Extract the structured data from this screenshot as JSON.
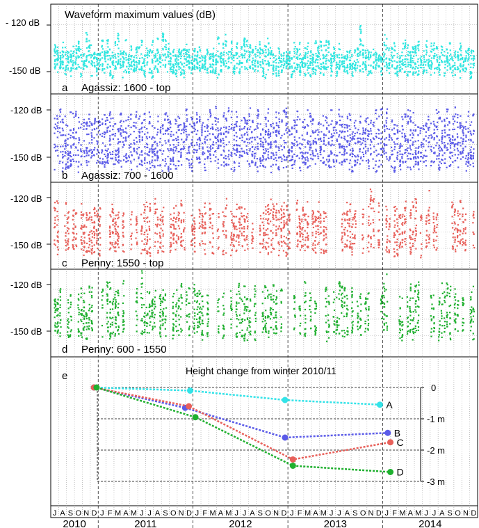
{
  "chart_data": [
    {
      "panel": "a",
      "type": "scatter",
      "title": "Waveform maximum values (dB)",
      "label": "Agassiz: 1600 - top",
      "yticks": [
        "- 120 dB",
        "-150 dB"
      ],
      "ylim": [
        -157,
        -112
      ],
      "color": "#2ee6e0",
      "x": [
        "2010-07",
        "2014-12"
      ],
      "y_range_dB": [
        -150,
        -128
      ],
      "grid": true
    },
    {
      "panel": "b",
      "type": "scatter",
      "label": "Agassiz: 700 - 1600",
      "yticks": [
        "-120 dB",
        "-150 dB"
      ],
      "ylim": [
        -157,
        -112
      ],
      "color": "#5b5be8",
      "y_range_dB": [
        -153,
        -117
      ],
      "grid": true
    },
    {
      "panel": "c",
      "type": "scatter",
      "label": "Penny:  1550 - top",
      "yticks": [
        "-120 dB",
        "-150 dB"
      ],
      "ylim": [
        -157,
        -112
      ],
      "color": "#e8605a",
      "y_range_dB": [
        -152,
        -118
      ],
      "grid": true
    },
    {
      "panel": "d",
      "type": "scatter",
      "label": "Penny:  600 - 1550",
      "yticks": [
        "-120 dB",
        "-150 dB"
      ],
      "ylim": [
        -157,
        -112
      ],
      "color": "#1fb02f",
      "y_range_dB": [
        -150,
        -116
      ],
      "grid": true
    },
    {
      "panel": "e",
      "type": "line",
      "title": "Height change from winter 2010/11",
      "yticks": [
        "0",
        "-1 m",
        "-2 m",
        "-3 m"
      ],
      "ylim": [
        -3,
        0
      ],
      "series": [
        {
          "name": "A",
          "color": "#33e3e8",
          "x": [
            "2010-12-15",
            "2011-12-20",
            "2012-12-20",
            "2013-12-20"
          ],
          "values": [
            0,
            -0.1,
            -0.4,
            -0.55
          ]
        },
        {
          "name": "B",
          "color": "#5b5be8",
          "x": [
            "2010-12-15",
            "2011-12-01",
            "2012-12-20",
            "2014-01-20"
          ],
          "values": [
            0,
            -0.65,
            -1.6,
            -1.45
          ]
        },
        {
          "name": "C",
          "color": "#e8605a",
          "x": [
            "2010-12-15",
            "2011-12-15",
            "2013-01-20",
            "2014-01-30"
          ],
          "values": [
            0,
            -0.6,
            -2.3,
            -1.75
          ]
        },
        {
          "name": "D",
          "color": "#1fb02f",
          "x": [
            "2010-12-25",
            "2012-01-10",
            "2013-01-20",
            "2014-01-30"
          ],
          "values": [
            0,
            -0.95,
            -2.5,
            -2.7
          ]
        }
      ]
    }
  ],
  "axis": {
    "month_letters": [
      "J",
      "A",
      "S",
      "O",
      "N",
      "D",
      "J",
      "F",
      "M",
      "A",
      "M",
      "J",
      "J",
      "A",
      "S",
      "O",
      "N",
      "D",
      "J",
      "F",
      "M",
      "A",
      "M",
      "J",
      "J",
      "A",
      "S",
      "O",
      "N",
      "D",
      "J",
      "F",
      "M",
      "A",
      "M",
      "J",
      "J",
      "A",
      "S",
      "O",
      "N",
      "D",
      "J",
      "F",
      "M",
      "A",
      "M",
      "J",
      "J",
      "A",
      "S",
      "O",
      "N",
      "D"
    ],
    "years": [
      "2010",
      "2011",
      "2012",
      "2013",
      "2014"
    ]
  },
  "panel_letters": [
    "a",
    "b",
    "c",
    "d",
    "e"
  ]
}
